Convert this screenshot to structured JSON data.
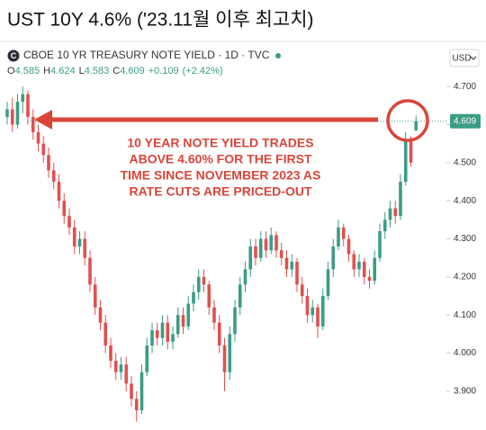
{
  "page_title": "UST 10Y 4.6% ('23.11월 이후 최고치)",
  "chart_data": {
    "type": "candlestick",
    "icon_letter": "C",
    "title": "CBOE 10 YR TREASURY NOTE YIELD · 1D · TVC",
    "ohlc_keys": [
      "O",
      "H",
      "L",
      "C"
    ],
    "change": "+0.109",
    "change_pct": "(+2.42%)",
    "currency": "USD",
    "annotation": [
      "10 YEAR NOTE YIELD TRADES",
      "ABOVE 4.60% FOR THE FIRST",
      "TIME SINCE NOVEMBER 2023 AS",
      "RATE CUTS ARE PRICED-OUT"
    ],
    "up_color": "#3b9c86",
    "down_color": "#e0504e",
    "categories": [
      null,
      null,
      null,
      null,
      null,
      null,
      null,
      null,
      null,
      null,
      null,
      null,
      null,
      null,
      null,
      null,
      null,
      null,
      null,
      null,
      null,
      null,
      null,
      null,
      null,
      null,
      null,
      null,
      null,
      null,
      null,
      null,
      null,
      null,
      null,
      null,
      null,
      null,
      null,
      null,
      null,
      null,
      null,
      null,
      null,
      null,
      null,
      null,
      null,
      null,
      null,
      null,
      null,
      null,
      null,
      null,
      null,
      null,
      null,
      null,
      null,
      null,
      null,
      null,
      null,
      null,
      null,
      null,
      null,
      null,
      null,
      null,
      null,
      null,
      null,
      null,
      null,
      null,
      null,
      null
    ],
    "open": [
      4.62,
      4.64,
      4.6,
      4.66,
      4.68,
      4.62,
      4.58,
      4.55,
      4.52,
      4.48,
      4.45,
      4.4,
      4.36,
      4.33,
      4.28,
      4.3,
      4.25,
      4.18,
      4.12,
      4.08,
      4.02,
      3.98,
      3.95,
      3.97,
      3.92,
      3.88,
      3.85,
      3.95,
      4.02,
      4.06,
      4.04,
      4.08,
      4.03,
      4.05,
      4.1,
      4.07,
      4.13,
      4.16,
      4.2,
      4.18,
      4.12,
      4.08,
      4.02,
      3.95,
      4.05,
      4.12,
      4.18,
      4.22,
      4.28,
      4.25,
      4.3,
      4.27,
      4.31,
      4.27,
      4.25,
      4.22,
      4.24,
      4.18,
      4.15,
      4.1,
      4.12,
      4.07,
      4.15,
      4.22,
      4.28,
      4.33,
      4.3,
      4.26,
      4.22,
      4.24,
      4.2,
      4.19,
      4.25,
      4.32,
      4.35,
      4.38,
      4.36,
      4.45,
      4.56,
      4.585
    ],
    "high": [
      4.66,
      4.67,
      4.68,
      4.7,
      4.69,
      4.64,
      4.6,
      4.57,
      4.54,
      4.5,
      4.47,
      4.42,
      4.38,
      4.35,
      4.32,
      4.32,
      4.27,
      4.2,
      4.14,
      4.1,
      4.04,
      4.0,
      3.99,
      3.99,
      3.94,
      3.9,
      3.97,
      4.04,
      4.08,
      4.08,
      4.1,
      4.1,
      4.07,
      4.12,
      4.12,
      4.15,
      4.18,
      4.22,
      4.22,
      4.19,
      4.14,
      4.1,
      4.04,
      4.07,
      4.14,
      4.2,
      4.24,
      4.3,
      4.3,
      4.32,
      4.32,
      4.33,
      4.32,
      4.29,
      4.27,
      4.26,
      4.25,
      4.2,
      4.17,
      4.14,
      4.13,
      4.17,
      4.24,
      4.3,
      4.35,
      4.34,
      4.31,
      4.27,
      4.26,
      4.25,
      4.22,
      4.27,
      4.34,
      4.37,
      4.4,
      4.4,
      4.47,
      4.58,
      4.57,
      4.624
    ],
    "low": [
      4.6,
      4.58,
      4.59,
      4.63,
      4.6,
      4.56,
      4.53,
      4.5,
      4.46,
      4.43,
      4.38,
      4.34,
      4.31,
      4.26,
      4.26,
      4.23,
      4.16,
      4.1,
      4.06,
      4.0,
      3.96,
      3.93,
      3.93,
      3.9,
      3.86,
      3.82,
      3.84,
      3.94,
      4.0,
      4.02,
      4.02,
      4.01,
      4.01,
      4.04,
      4.05,
      4.06,
      4.11,
      4.14,
      4.16,
      4.1,
      4.06,
      4.0,
      3.9,
      3.93,
      4.03,
      4.1,
      4.16,
      4.2,
      4.23,
      4.24,
      4.25,
      4.26,
      4.25,
      4.23,
      4.2,
      4.2,
      4.16,
      4.13,
      4.08,
      4.08,
      4.04,
      4.06,
      4.14,
      4.2,
      4.27,
      4.28,
      4.24,
      4.2,
      4.2,
      4.18,
      4.17,
      4.18,
      4.24,
      4.3,
      4.33,
      4.34,
      4.35,
      4.44,
      4.49,
      4.583
    ],
    "close": [
      4.64,
      4.6,
      4.66,
      4.68,
      4.62,
      4.58,
      4.55,
      4.52,
      4.48,
      4.45,
      4.4,
      4.36,
      4.33,
      4.28,
      4.3,
      4.25,
      4.18,
      4.12,
      4.08,
      4.02,
      3.98,
      3.95,
      3.97,
      3.92,
      3.88,
      3.85,
      3.95,
      4.02,
      4.06,
      4.04,
      4.08,
      4.03,
      4.05,
      4.1,
      4.07,
      4.13,
      4.16,
      4.2,
      4.18,
      4.12,
      4.08,
      4.02,
      3.95,
      4.05,
      4.12,
      4.18,
      4.22,
      4.28,
      4.25,
      4.3,
      4.27,
      4.31,
      4.27,
      4.25,
      4.22,
      4.24,
      4.18,
      4.15,
      4.1,
      4.12,
      4.07,
      4.15,
      4.22,
      4.28,
      4.33,
      4.3,
      4.26,
      4.22,
      4.24,
      4.2,
      4.19,
      4.25,
      4.32,
      4.35,
      4.38,
      4.36,
      4.45,
      4.56,
      4.5,
      4.609
    ],
    "ylim": [
      3.81,
      4.75
    ],
    "yticks": [
      {
        "value": 3.9,
        "label": "3.900"
      },
      {
        "value": 4.0,
        "label": "4.000"
      },
      {
        "value": 4.1,
        "label": "4.100"
      },
      {
        "value": 4.2,
        "label": "4.200"
      },
      {
        "value": 4.3,
        "label": "4.300"
      },
      {
        "value": 4.4,
        "label": "4.400"
      },
      {
        "value": 4.5,
        "label": "4.500"
      },
      {
        "value": 4.6,
        "label": "4.600"
      },
      {
        "value": 4.7,
        "label": "4.700"
      }
    ]
  }
}
